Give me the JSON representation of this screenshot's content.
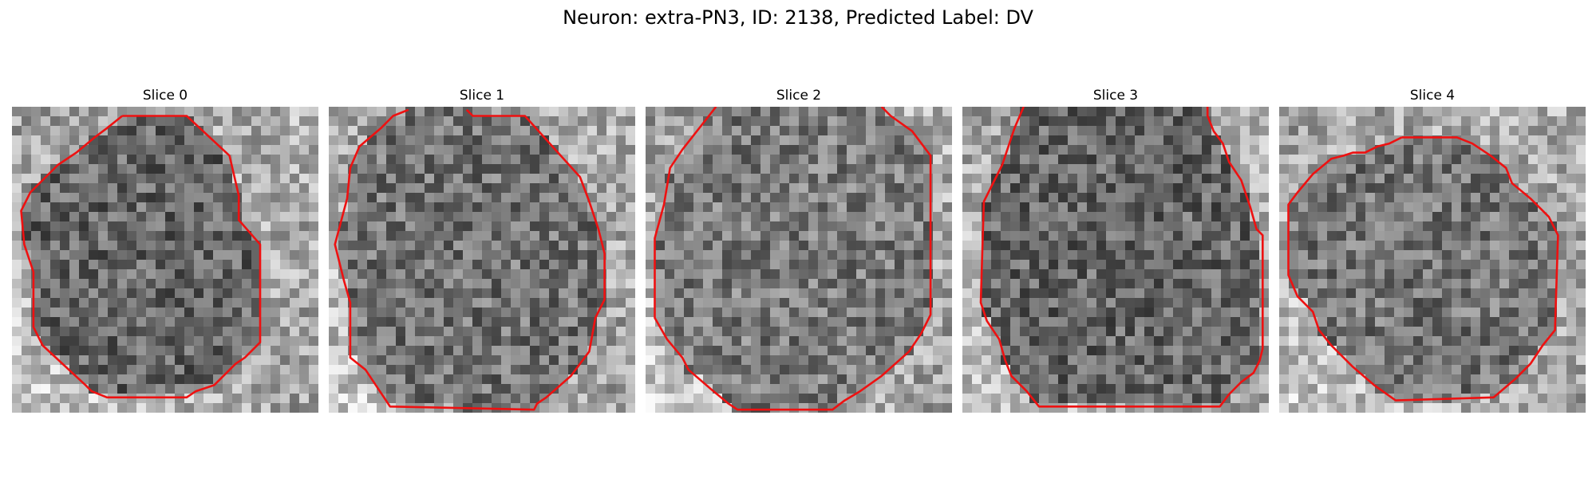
{
  "figure": {
    "title": "Neuron: extra-PN3, ID: 2138, Predicted Label: DV"
  },
  "contour_color": "#ee1111",
  "slices": [
    {
      "label": "Slice 0",
      "seed": 11,
      "interior_tone": 0.4,
      "contour": [
        [
          0.36,
          0.03
        ],
        [
          0.57,
          0.03
        ],
        [
          0.71,
          0.16
        ],
        [
          0.74,
          0.29
        ],
        [
          0.74,
          0.37
        ],
        [
          0.81,
          0.45
        ],
        [
          0.81,
          0.77
        ],
        [
          0.76,
          0.82
        ],
        [
          0.73,
          0.84
        ],
        [
          0.66,
          0.91
        ],
        [
          0.6,
          0.93
        ],
        [
          0.57,
          0.95
        ],
        [
          0.31,
          0.95
        ],
        [
          0.26,
          0.93
        ],
        [
          0.24,
          0.91
        ],
        [
          0.1,
          0.78
        ],
        [
          0.07,
          0.72
        ],
        [
          0.07,
          0.54
        ],
        [
          0.04,
          0.45
        ],
        [
          0.03,
          0.34
        ],
        [
          0.06,
          0.28
        ],
        [
          0.15,
          0.19
        ],
        [
          0.21,
          0.15
        ],
        [
          0.27,
          0.1
        ],
        [
          0.31,
          0.07
        ],
        [
          0.36,
          0.03
        ]
      ]
    },
    {
      "label": "Slice 1",
      "seed": 23,
      "interior_tone": 0.45,
      "contour": [
        [
          0.45,
          0.01
        ],
        [
          0.47,
          0.03
        ],
        [
          0.64,
          0.03
        ],
        [
          0.73,
          0.13
        ],
        [
          0.82,
          0.23
        ],
        [
          0.85,
          0.31
        ],
        [
          0.88,
          0.4
        ],
        [
          0.9,
          0.48
        ],
        [
          0.9,
          0.63
        ],
        [
          0.87,
          0.69
        ],
        [
          0.85,
          0.8
        ],
        [
          0.79,
          0.88
        ],
        [
          0.71,
          0.95
        ],
        [
          0.68,
          0.97
        ],
        [
          0.67,
          0.99
        ],
        [
          0.2,
          0.98
        ],
        [
          0.12,
          0.86
        ],
        [
          0.07,
          0.82
        ],
        [
          0.07,
          0.64
        ],
        [
          0.05,
          0.57
        ],
        [
          0.02,
          0.45
        ],
        [
          0.06,
          0.3
        ],
        [
          0.07,
          0.2
        ],
        [
          0.1,
          0.13
        ],
        [
          0.17,
          0.07
        ],
        [
          0.21,
          0.03
        ],
        [
          0.26,
          0.01
        ]
      ]
    },
    {
      "label": "Slice 2",
      "seed": 37,
      "interior_tone": 0.48,
      "contour": [
        [
          0.23,
          0.0
        ],
        [
          0.12,
          0.14
        ],
        [
          0.08,
          0.2
        ],
        [
          0.06,
          0.32
        ],
        [
          0.03,
          0.43
        ],
        [
          0.03,
          0.69
        ],
        [
          0.07,
          0.76
        ],
        [
          0.12,
          0.82
        ],
        [
          0.14,
          0.86
        ],
        [
          0.21,
          0.92
        ],
        [
          0.27,
          0.97
        ],
        [
          0.3,
          0.99
        ],
        [
          0.61,
          0.99
        ],
        [
          0.65,
          0.96
        ],
        [
          0.7,
          0.93
        ],
        [
          0.77,
          0.88
        ],
        [
          0.86,
          0.8
        ],
        [
          0.9,
          0.74
        ],
        [
          0.93,
          0.68
        ],
        [
          0.93,
          0.16
        ],
        [
          0.87,
          0.08
        ],
        [
          0.8,
          0.03
        ],
        [
          0.77,
          0.0
        ]
      ]
    },
    {
      "label": "Slice 3",
      "seed": 53,
      "interior_tone": 0.4,
      "contour": [
        [
          0.2,
          0.0
        ],
        [
          0.17,
          0.07
        ],
        [
          0.15,
          0.13
        ],
        [
          0.13,
          0.19
        ],
        [
          0.1,
          0.25
        ],
        [
          0.07,
          0.31
        ],
        [
          0.06,
          0.64
        ],
        [
          0.08,
          0.7
        ],
        [
          0.12,
          0.76
        ],
        [
          0.14,
          0.83
        ],
        [
          0.16,
          0.88
        ],
        [
          0.21,
          0.93
        ],
        [
          0.25,
          0.98
        ],
        [
          0.84,
          0.98
        ],
        [
          0.87,
          0.94
        ],
        [
          0.91,
          0.9
        ],
        [
          0.95,
          0.87
        ],
        [
          0.97,
          0.83
        ],
        [
          0.98,
          0.79
        ],
        [
          0.98,
          0.42
        ],
        [
          0.96,
          0.4
        ],
        [
          0.94,
          0.33
        ],
        [
          0.91,
          0.24
        ],
        [
          0.87,
          0.18
        ],
        [
          0.85,
          0.12
        ],
        [
          0.82,
          0.08
        ],
        [
          0.8,
          0.03
        ],
        [
          0.8,
          0.0
        ]
      ]
    },
    {
      "label": "Slice 4",
      "seed": 71,
      "interior_tone": 0.46,
      "contour": [
        [
          0.4,
          0.1
        ],
        [
          0.58,
          0.1
        ],
        [
          0.63,
          0.12
        ],
        [
          0.69,
          0.16
        ],
        [
          0.74,
          0.2
        ],
        [
          0.76,
          0.25
        ],
        [
          0.82,
          0.3
        ],
        [
          0.88,
          0.36
        ],
        [
          0.91,
          0.42
        ],
        [
          0.9,
          0.73
        ],
        [
          0.86,
          0.78
        ],
        [
          0.82,
          0.84
        ],
        [
          0.77,
          0.89
        ],
        [
          0.7,
          0.95
        ],
        [
          0.38,
          0.96
        ],
        [
          0.31,
          0.91
        ],
        [
          0.24,
          0.85
        ],
        [
          0.17,
          0.78
        ],
        [
          0.13,
          0.73
        ],
        [
          0.11,
          0.67
        ],
        [
          0.06,
          0.62
        ],
        [
          0.03,
          0.55
        ],
        [
          0.03,
          0.32
        ],
        [
          0.06,
          0.28
        ],
        [
          0.11,
          0.22
        ],
        [
          0.17,
          0.17
        ],
        [
          0.21,
          0.16
        ],
        [
          0.24,
          0.15
        ],
        [
          0.28,
          0.15
        ],
        [
          0.32,
          0.13
        ],
        [
          0.36,
          0.12
        ],
        [
          0.4,
          0.1
        ]
      ]
    }
  ]
}
